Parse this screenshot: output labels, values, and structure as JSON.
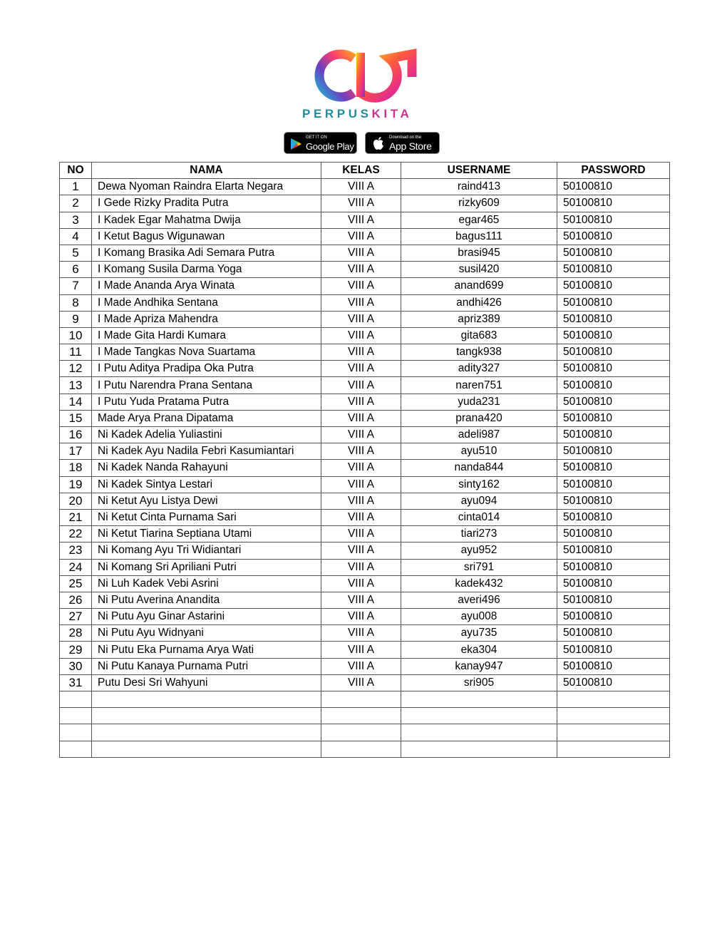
{
  "brand": {
    "part1": "PERPUS",
    "part2": "KITA",
    "colors": {
      "teal": "#1e8e9e",
      "magenta": "#c7338f"
    }
  },
  "badges": {
    "google_play": {
      "small": "GET IT ON",
      "big": "Google Play"
    },
    "app_store": {
      "small": "Download on the",
      "big": "App Store"
    }
  },
  "table": {
    "headers": [
      "NO",
      "NAMA",
      "KELAS",
      "USERNAME",
      "PASSWORD"
    ],
    "rows": [
      [
        "1",
        "Dewa Nyoman Raindra Elarta Negara",
        "VIII A",
        "raind413",
        "50100810"
      ],
      [
        "2",
        "I Gede Rizky Pradita Putra",
        "VIII A",
        "rizky609",
        "50100810"
      ],
      [
        "3",
        "I Kadek Egar Mahatma Dwija",
        "VIII A",
        "egar465",
        "50100810"
      ],
      [
        "4",
        "I Ketut Bagus Wigunawan",
        "VIII A",
        "bagus111",
        "50100810"
      ],
      [
        "5",
        "I Komang Brasika Adi Semara Putra",
        "VIII A",
        "brasi945",
        "50100810"
      ],
      [
        "6",
        "I Komang Susila Darma Yoga",
        "VIII A",
        "susil420",
        "50100810"
      ],
      [
        "7",
        "I Made Ananda Arya Winata",
        "VIII A",
        "anand699",
        "50100810"
      ],
      [
        "8",
        "I Made Andhika Sentana",
        "VIII A",
        "andhi426",
        "50100810"
      ],
      [
        "9",
        "I Made Apriza Mahendra",
        "VIII A",
        "apriz389",
        "50100810"
      ],
      [
        "10",
        "I Made Gita Hardi Kumara",
        "VIII A",
        "gita683",
        "50100810"
      ],
      [
        "11",
        "I Made Tangkas Nova Suartama",
        "VIII A",
        "tangk938",
        "50100810"
      ],
      [
        "12",
        "I Putu Aditya Pradipa Oka Putra",
        "VIII A",
        "adity327",
        "50100810"
      ],
      [
        "13",
        "I Putu Narendra Prana Sentana",
        "VIII A",
        "naren751",
        "50100810"
      ],
      [
        "14",
        "I Putu Yuda Pratama Putra",
        "VIII A",
        "yuda231",
        "50100810"
      ],
      [
        "15",
        "Made Arya Prana Dipatama",
        "VIII A",
        "prana420",
        "50100810"
      ],
      [
        "16",
        "Ni Kadek Adelia Yuliastini",
        "VIII A",
        "adeli987",
        "50100810"
      ],
      [
        "17",
        "Ni Kadek Ayu Nadila Febri Kasumiantari",
        "VIII A",
        "ayu510",
        "50100810"
      ],
      [
        "18",
        "Ni Kadek Nanda Rahayuni",
        "VIII A",
        "nanda844",
        "50100810"
      ],
      [
        "19",
        "Ni Kadek Sintya Lestari",
        "VIII A",
        "sinty162",
        "50100810"
      ],
      [
        "20",
        "Ni Ketut Ayu Listya Dewi",
        "VIII A",
        "ayu094",
        "50100810"
      ],
      [
        "21",
        "Ni Ketut Cinta Purnama Sari",
        "VIII A",
        "cinta014",
        "50100810"
      ],
      [
        "22",
        "Ni Ketut Tiarina Septiana Utami",
        "VIII A",
        "tiari273",
        "50100810"
      ],
      [
        "23",
        "Ni Komang Ayu Tri Widiantari",
        "VIII A",
        "ayu952",
        "50100810"
      ],
      [
        "24",
        "Ni Komang Sri Apriliani Putri",
        "VIII A",
        "sri791",
        "50100810"
      ],
      [
        "25",
        "Ni Luh Kadek Vebi Asrini",
        "VIII A",
        "kadek432",
        "50100810"
      ],
      [
        "26",
        "Ni Putu Averina Anandita",
        "VIII A",
        "averi496",
        "50100810"
      ],
      [
        "27",
        "Ni Putu Ayu Ginar Astarini",
        "VIII A",
        "ayu008",
        "50100810"
      ],
      [
        "28",
        "Ni Putu Ayu Widnyani",
        "VIII A",
        "ayu735",
        "50100810"
      ],
      [
        "29",
        "Ni Putu Eka Purnama Arya Wati",
        "VIII A",
        "eka304",
        "50100810"
      ],
      [
        "30",
        "Ni Putu Kanaya Purnama Putri",
        "VIII A",
        "kanay947",
        "50100810"
      ],
      [
        "31",
        "Putu Desi Sri Wahyuni",
        "VIII A",
        "sri905",
        "50100810"
      ],
      [
        "",
        "",
        "",
        "",
        ""
      ],
      [
        "",
        "",
        "",
        "",
        ""
      ],
      [
        "",
        "",
        "",
        "",
        ""
      ],
      [
        "",
        "",
        "",
        "",
        ""
      ]
    ]
  }
}
